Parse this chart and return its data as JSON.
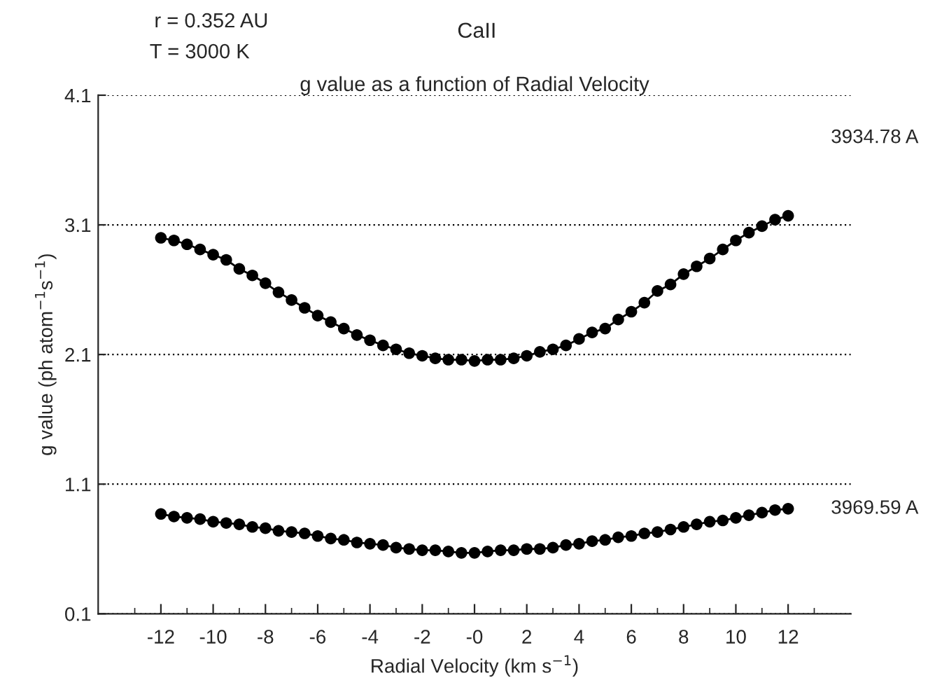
{
  "chart_data": {
    "type": "line",
    "title": "CaII",
    "subtitle": "g value as a function of Radial Velocity",
    "xlabel": "Radial Velocity (km s$^{−1}$)",
    "ylabel": "g value (ph atom$^{−1}$s$^{−1}$)",
    "annotations": [
      "r = 0.352 AU",
      "T = 3000 K"
    ],
    "x": [
      -12,
      -11.5,
      -11,
      -10.5,
      -10,
      -9.5,
      -9,
      -8.5,
      -8,
      -7.5,
      -7,
      -6.5,
      -6,
      -5.5,
      -5,
      -4.5,
      -4,
      -3.5,
      -3,
      -2.5,
      -2,
      -1.5,
      -1,
      -0.5,
      0,
      0.5,
      1,
      1.5,
      2,
      2.5,
      3,
      3.5,
      4,
      4.5,
      5,
      5.5,
      6,
      6.5,
      7,
      7.5,
      8,
      8.5,
      9,
      9.5,
      10,
      10.5,
      11,
      11.5,
      12
    ],
    "series": [
      {
        "name": "3934.78 A",
        "color": "#000000",
        "values": [
          3.0,
          2.98,
          2.95,
          2.91,
          2.87,
          2.83,
          2.76,
          2.71,
          2.65,
          2.58,
          2.52,
          2.46,
          2.4,
          2.35,
          2.3,
          2.25,
          2.21,
          2.17,
          2.14,
          2.11,
          2.09,
          2.07,
          2.06,
          2.06,
          2.05,
          2.06,
          2.06,
          2.07,
          2.09,
          2.12,
          2.14,
          2.17,
          2.22,
          2.27,
          2.3,
          2.37,
          2.43,
          2.5,
          2.59,
          2.64,
          2.72,
          2.78,
          2.84,
          2.91,
          2.98,
          3.04,
          3.09,
          3.14,
          3.17
        ]
      },
      {
        "name": "3969.59 A",
        "color": "#000000",
        "values": [
          0.87,
          0.85,
          0.84,
          0.83,
          0.81,
          0.8,
          0.79,
          0.77,
          0.76,
          0.74,
          0.73,
          0.72,
          0.7,
          0.68,
          0.67,
          0.65,
          0.64,
          0.63,
          0.61,
          0.6,
          0.59,
          0.59,
          0.58,
          0.57,
          0.57,
          0.58,
          0.59,
          0.59,
          0.6,
          0.6,
          0.61,
          0.63,
          0.64,
          0.66,
          0.67,
          0.69,
          0.7,
          0.72,
          0.73,
          0.75,
          0.77,
          0.79,
          0.81,
          0.82,
          0.84,
          0.86,
          0.88,
          0.9,
          0.91
        ]
      }
    ],
    "xlim": [
      -14.4,
      14.4
    ],
    "xticks": [
      {
        "value": -13,
        "label": null
      },
      -12,
      {
        "value": -11,
        "label": null
      },
      -10,
      {
        "value": -9,
        "label": null
      },
      -8,
      {
        "value": -7,
        "label": null
      },
      -6,
      {
        "value": -5,
        "label": null
      },
      -4,
      {
        "value": -3,
        "label": null
      },
      -2,
      {
        "value": -1,
        "label": null
      },
      {
        "value": 0,
        "label": "-0"
      },
      {
        "value": 1,
        "label": null
      },
      2,
      {
        "value": 3,
        "label": null
      },
      4,
      {
        "value": 5,
        "label": null
      },
      6,
      {
        "value": 7,
        "label": null
      },
      8,
      {
        "value": 9,
        "label": null
      },
      10,
      {
        "value": 11,
        "label": null
      },
      12,
      {
        "value": 13,
        "label": null
      }
    ],
    "ylim": [
      0.1,
      4.1
    ],
    "yticks": [
      0.1,
      1.1,
      2.1,
      3.1,
      4.1
    ],
    "grid": "y",
    "legend": false,
    "marker": "circle",
    "line_style": "solid"
  }
}
